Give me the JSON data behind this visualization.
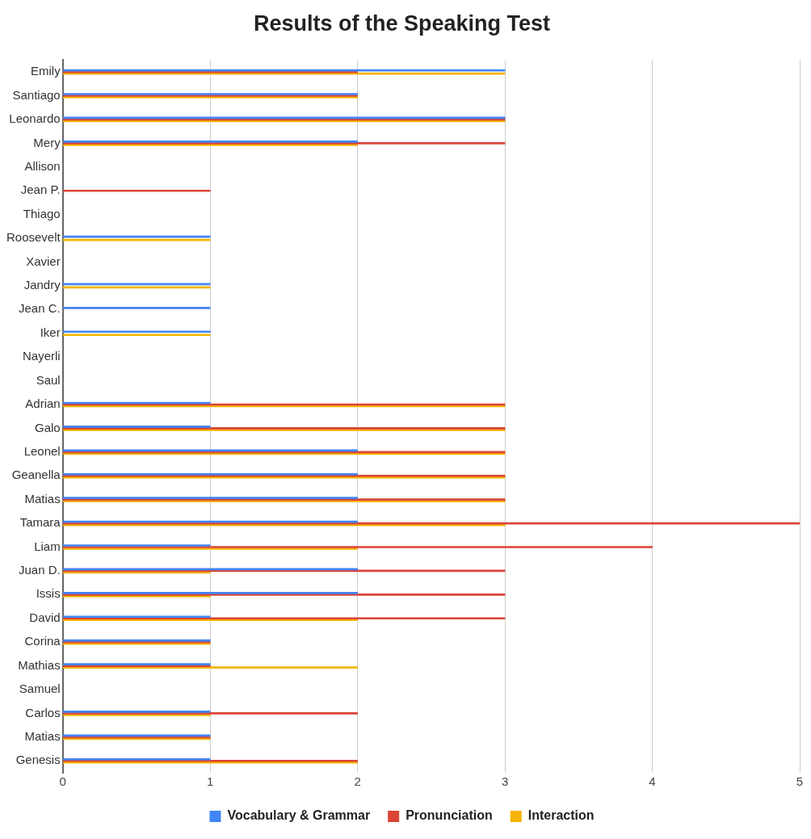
{
  "chart_data": {
    "type": "bar",
    "orientation": "horizontal",
    "title": "Results of the Speaking Test",
    "categories": [
      "Emily",
      "Santiago",
      "Leonardo",
      "Mery",
      "Allison",
      "Jean P.",
      "Thiago",
      "Roosevelt",
      "Xavier",
      "Jandry",
      "Jean C.",
      "Iker",
      "Nayerli",
      "Saul",
      "Adrian",
      "Galo",
      "Leonel",
      "Geanella",
      "Matias",
      "Tamara",
      "Liam",
      "Juan D.",
      "Issis",
      "David",
      "Corina",
      "Mathias",
      "Samuel",
      "Carlos",
      "Matias",
      "Genesis"
    ],
    "series": [
      {
        "name": "Vocabulary & Grammar",
        "color": "#4285f4",
        "values": [
          3,
          2,
          3,
          2,
          0,
          0,
          0,
          1,
          0,
          1,
          1,
          1,
          0,
          0,
          1,
          1,
          2,
          2,
          2,
          2,
          1,
          2,
          2,
          1,
          1,
          1,
          0,
          1,
          1,
          1
        ]
      },
      {
        "name": "Pronunciation",
        "color": "#db4437",
        "values": [
          2,
          2,
          3,
          3,
          0,
          1,
          0,
          0,
          0,
          0,
          0,
          0,
          0,
          0,
          3,
          3,
          3,
          3,
          3,
          5,
          4,
          3,
          3,
          3,
          1,
          1,
          0,
          2,
          1,
          2
        ]
      },
      {
        "name": "Interaction",
        "color": "#f4b400",
        "values": [
          3,
          2,
          3,
          2,
          0,
          0,
          0,
          1,
          0,
          1,
          0,
          1,
          0,
          0,
          3,
          3,
          3,
          3,
          3,
          3,
          2,
          1,
          1,
          2,
          1,
          2,
          0,
          1,
          1,
          2
        ]
      }
    ],
    "xlim": [
      0,
      5
    ],
    "xticks": [
      0,
      1,
      2,
      3,
      4,
      5
    ],
    "grid": "x",
    "legend": "bottom"
  }
}
